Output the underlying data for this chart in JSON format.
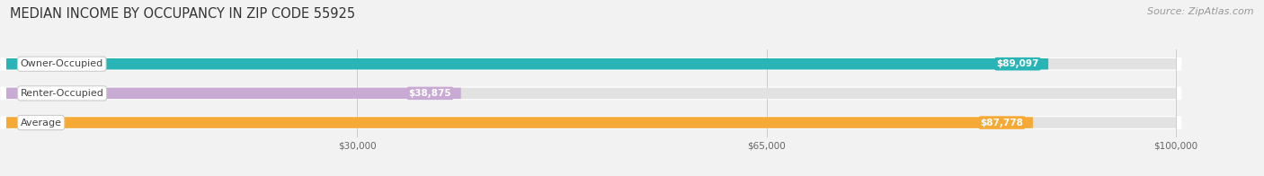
{
  "title": "MEDIAN INCOME BY OCCUPANCY IN ZIP CODE 55925",
  "source": "Source: ZipAtlas.com",
  "categories": [
    "Owner-Occupied",
    "Renter-Occupied",
    "Average"
  ],
  "values": [
    89097,
    38875,
    87778
  ],
  "bar_colors": [
    "#29b4b6",
    "#c9aad4",
    "#f7a935"
  ],
  "value_labels": [
    "$89,097",
    "$38,875",
    "$87,778"
  ],
  "x_ticks": [
    30000,
    65000,
    100000
  ],
  "x_tick_labels": [
    "$30,000",
    "$65,000",
    "$100,000"
  ],
  "xmax": 100000,
  "xlim_max": 107000,
  "background_color": "#f2f2f2",
  "bar_bg_color": "#e2e2e2",
  "title_fontsize": 10.5,
  "source_fontsize": 8,
  "label_fontsize": 8,
  "value_fontsize": 7.5,
  "tick_fontsize": 7.5,
  "bar_height": 0.38,
  "figsize": [
    14.06,
    1.96
  ],
  "dpi": 100
}
